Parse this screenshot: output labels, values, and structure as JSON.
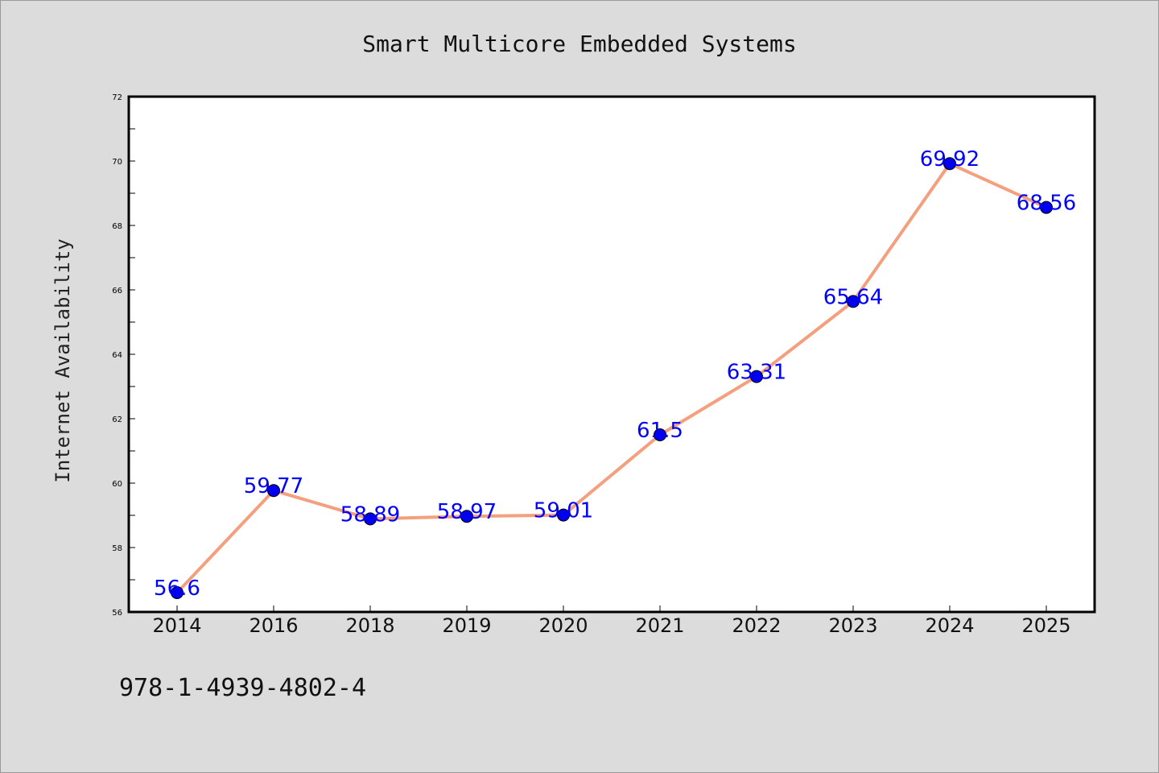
{
  "chart_data": {
    "type": "line",
    "title": "Smart Multicore Embedded Systems",
    "ylabel": "Internet Availability",
    "xlabel": "",
    "categories": [
      "2014",
      "2016",
      "2018",
      "2019",
      "2020",
      "2021",
      "2022",
      "2023",
      "2024",
      "2025"
    ],
    "series": [
      {
        "values": [
          56.6,
          59.77,
          58.89,
          58.97,
          59.01,
          61.5,
          63.31,
          65.64,
          69.92,
          68.56
        ]
      }
    ],
    "data_labels": [
      "56.6",
      "59.77",
      "58.89",
      "58.97",
      "59.01",
      "61.5",
      "63.31",
      "65.64",
      "69.92",
      "68.56"
    ],
    "ylim": [
      56,
      72
    ],
    "yticks": [
      "56",
      "58",
      "60",
      "62",
      "64",
      "66",
      "68",
      "70",
      "72"
    ],
    "grid": false,
    "line_color": "#f4a07e",
    "marker_color": "#0000ee",
    "label_color": "#0000ff",
    "background_color": "#dcdcdc",
    "plot_background_color": "#ffffff"
  },
  "footer": {
    "isbn": "978-1-4939-4802-4"
  }
}
